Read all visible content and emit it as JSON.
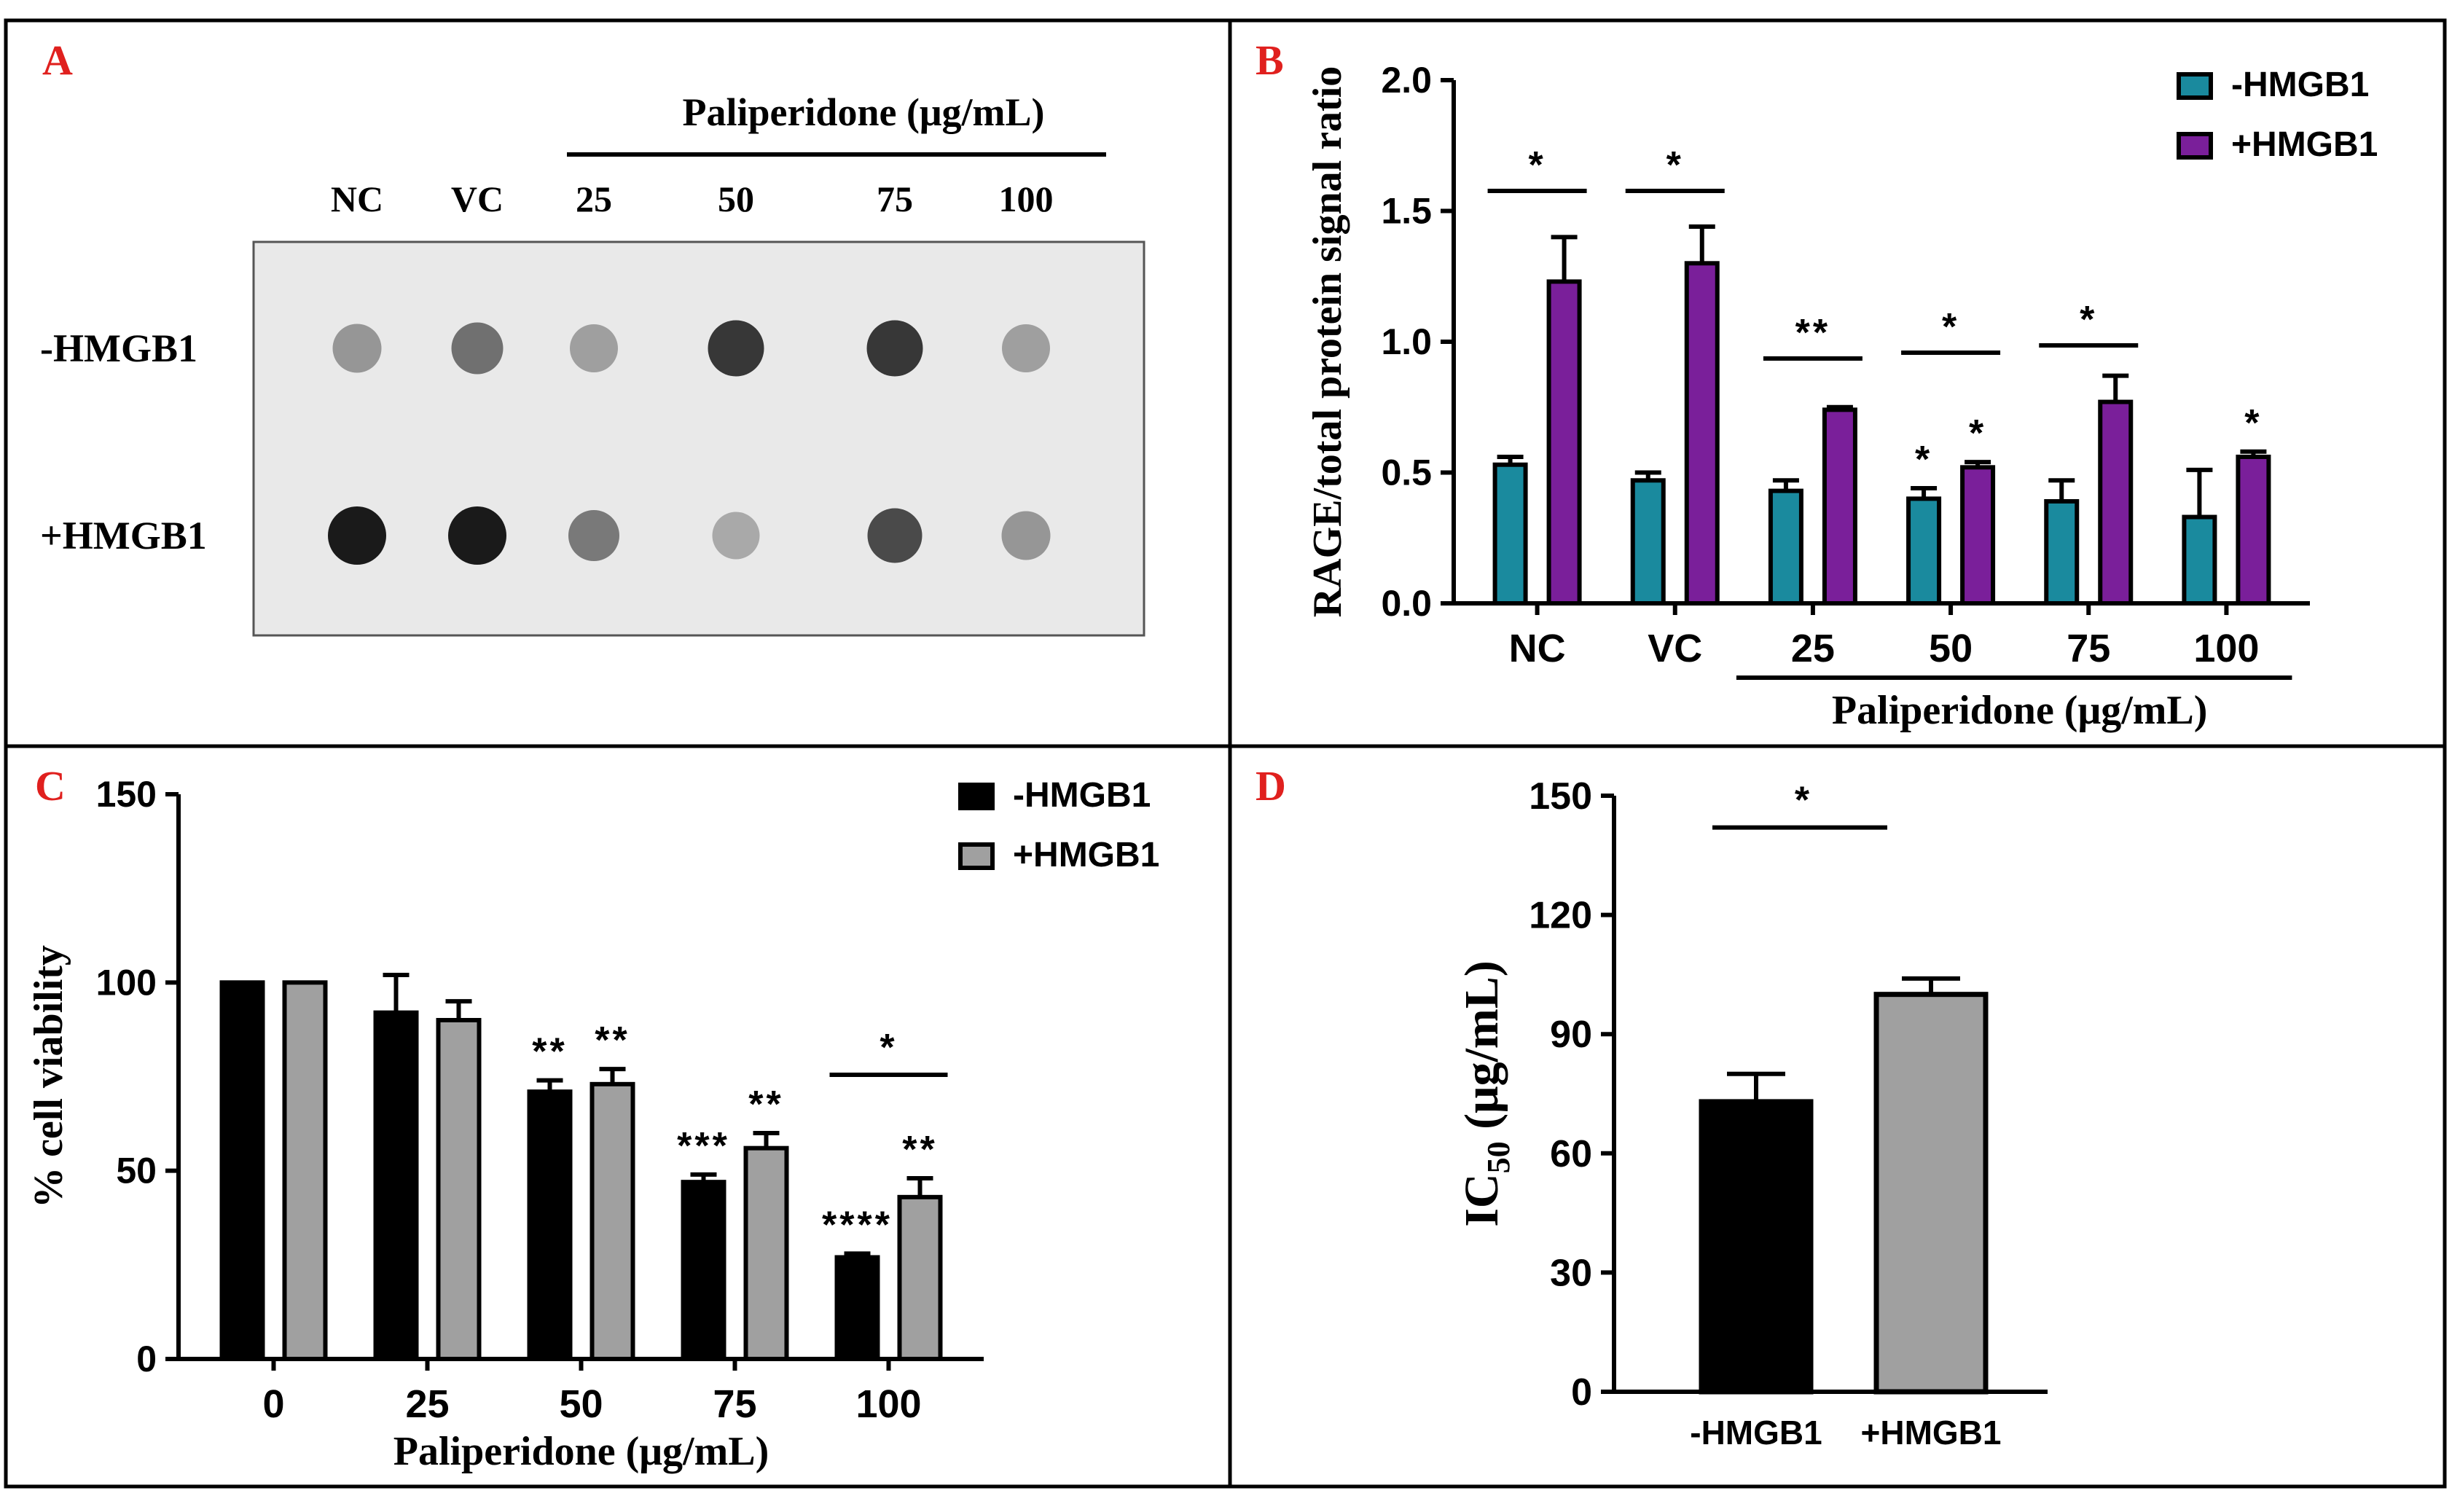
{
  "colors": {
    "panel_label": "#e0201e",
    "teal": "#1a8a9e",
    "purple": "#7a1f9a",
    "black": "#000000",
    "grey": "#a0a0a0",
    "blot_bg": "#e9e9e9",
    "frame": "#000000"
  },
  "panels": {
    "a": {
      "label": "A",
      "header": "Paliperidone (μg/mL)",
      "columns": [
        "NC",
        "VC",
        "25",
        "50",
        "75",
        "100"
      ],
      "rows": [
        "-HMGB1",
        "+HMGB1"
      ],
      "dot_intensity": [
        [
          0.35,
          0.55,
          0.3,
          0.85,
          0.85,
          0.3
        ],
        [
          1.0,
          1.0,
          0.5,
          0.25,
          0.75,
          0.35
        ]
      ]
    },
    "b": {
      "label": "B"
    },
    "c": {
      "label": "C"
    },
    "d": {
      "label": "D"
    }
  },
  "chart_data": [
    {
      "id": "B",
      "type": "bar",
      "title": "",
      "ylabel": "RAGE/total protein signal ratio",
      "xlabel": "Paliperidone (μg/mL)",
      "ylim": [
        0,
        2.0
      ],
      "yticks": [
        "0.0",
        "0.5",
        "1.0",
        "1.5",
        "2.0"
      ],
      "categories": [
        "NC",
        "VC",
        "25",
        "50",
        "75",
        "100"
      ],
      "group_bracket_categories": [
        "25",
        "50",
        "75",
        "100"
      ],
      "legend": [
        "-HMGB1",
        "+HMGB1"
      ],
      "legend_position": "top-right",
      "series": [
        {
          "name": "-HMGB1",
          "color": "#1a8a9e",
          "values": [
            0.53,
            0.47,
            0.43,
            0.4,
            0.39,
            0.33
          ],
          "errors": [
            0.03,
            0.03,
            0.04,
            0.04,
            0.08,
            0.18
          ]
        },
        {
          "name": "+HMGB1",
          "color": "#7a1f9a",
          "values": [
            1.23,
            1.3,
            0.74,
            0.52,
            0.77,
            0.56
          ],
          "errors": [
            0.17,
            0.14,
            0.01,
            0.02,
            0.1,
            0.02
          ]
        }
      ],
      "significance": [
        {
          "category": "NC",
          "label": "*",
          "between_series": true
        },
        {
          "category": "VC",
          "label": "*",
          "between_series": true
        },
        {
          "category": "25",
          "label": "**",
          "between_series": true
        },
        {
          "category": "50",
          "label": "*",
          "between_series": true
        },
        {
          "category": "75",
          "label": "*",
          "between_series": true
        },
        {
          "category": "50",
          "series": 0,
          "label": "*"
        },
        {
          "category": "50",
          "series": 1,
          "label": "*"
        },
        {
          "category": "100",
          "series": 1,
          "label": "*"
        }
      ]
    },
    {
      "id": "C",
      "type": "bar",
      "title": "",
      "ylabel": "% cell viability",
      "xlabel": "Paliperidone (μg/mL)",
      "ylim": [
        0,
        150
      ],
      "yticks": [
        "0",
        "50",
        "100",
        "150"
      ],
      "categories": [
        "0",
        "25",
        "50",
        "75",
        "100"
      ],
      "legend": [
        "-HMGB1",
        "+HMGB1"
      ],
      "legend_position": "top-right",
      "series": [
        {
          "name": "-HMGB1",
          "color": "#000000",
          "values": [
            100,
            92,
            71,
            47,
            27
          ],
          "errors": [
            0,
            10,
            3,
            2,
            1
          ]
        },
        {
          "name": "+HMGB1",
          "color": "#a0a0a0",
          "values": [
            100,
            90,
            73,
            56,
            43
          ],
          "errors": [
            0,
            5,
            4,
            4,
            5
          ]
        }
      ],
      "significance": [
        {
          "category": "50",
          "series": 0,
          "label": "**"
        },
        {
          "category": "50",
          "series": 1,
          "label": "**"
        },
        {
          "category": "75",
          "series": 0,
          "label": "***"
        },
        {
          "category": "75",
          "series": 1,
          "label": "**"
        },
        {
          "category": "100",
          "series": 0,
          "label": "****"
        },
        {
          "category": "100",
          "series": 1,
          "label": "**"
        },
        {
          "category": "100",
          "label": "*",
          "between_series": true
        }
      ]
    },
    {
      "id": "D",
      "type": "bar",
      "title": "",
      "ylabel": "IC50 (μg/mL)",
      "ylabel_main": "IC",
      "ylabel_sub": "50",
      "ylabel_unit": " (μg/mL)",
      "xlabel": "",
      "ylim": [
        0,
        150
      ],
      "yticks": [
        "0",
        "30",
        "60",
        "90",
        "120",
        "150"
      ],
      "categories": [
        "-HMGB1",
        "+HMGB1"
      ],
      "values": [
        73,
        100
      ],
      "errors": [
        7,
        4
      ],
      "colors": [
        "#000000",
        "#a0a0a0"
      ],
      "significance": [
        {
          "label": "*",
          "between": [
            "-HMGB1",
            "+HMGB1"
          ]
        }
      ]
    }
  ]
}
